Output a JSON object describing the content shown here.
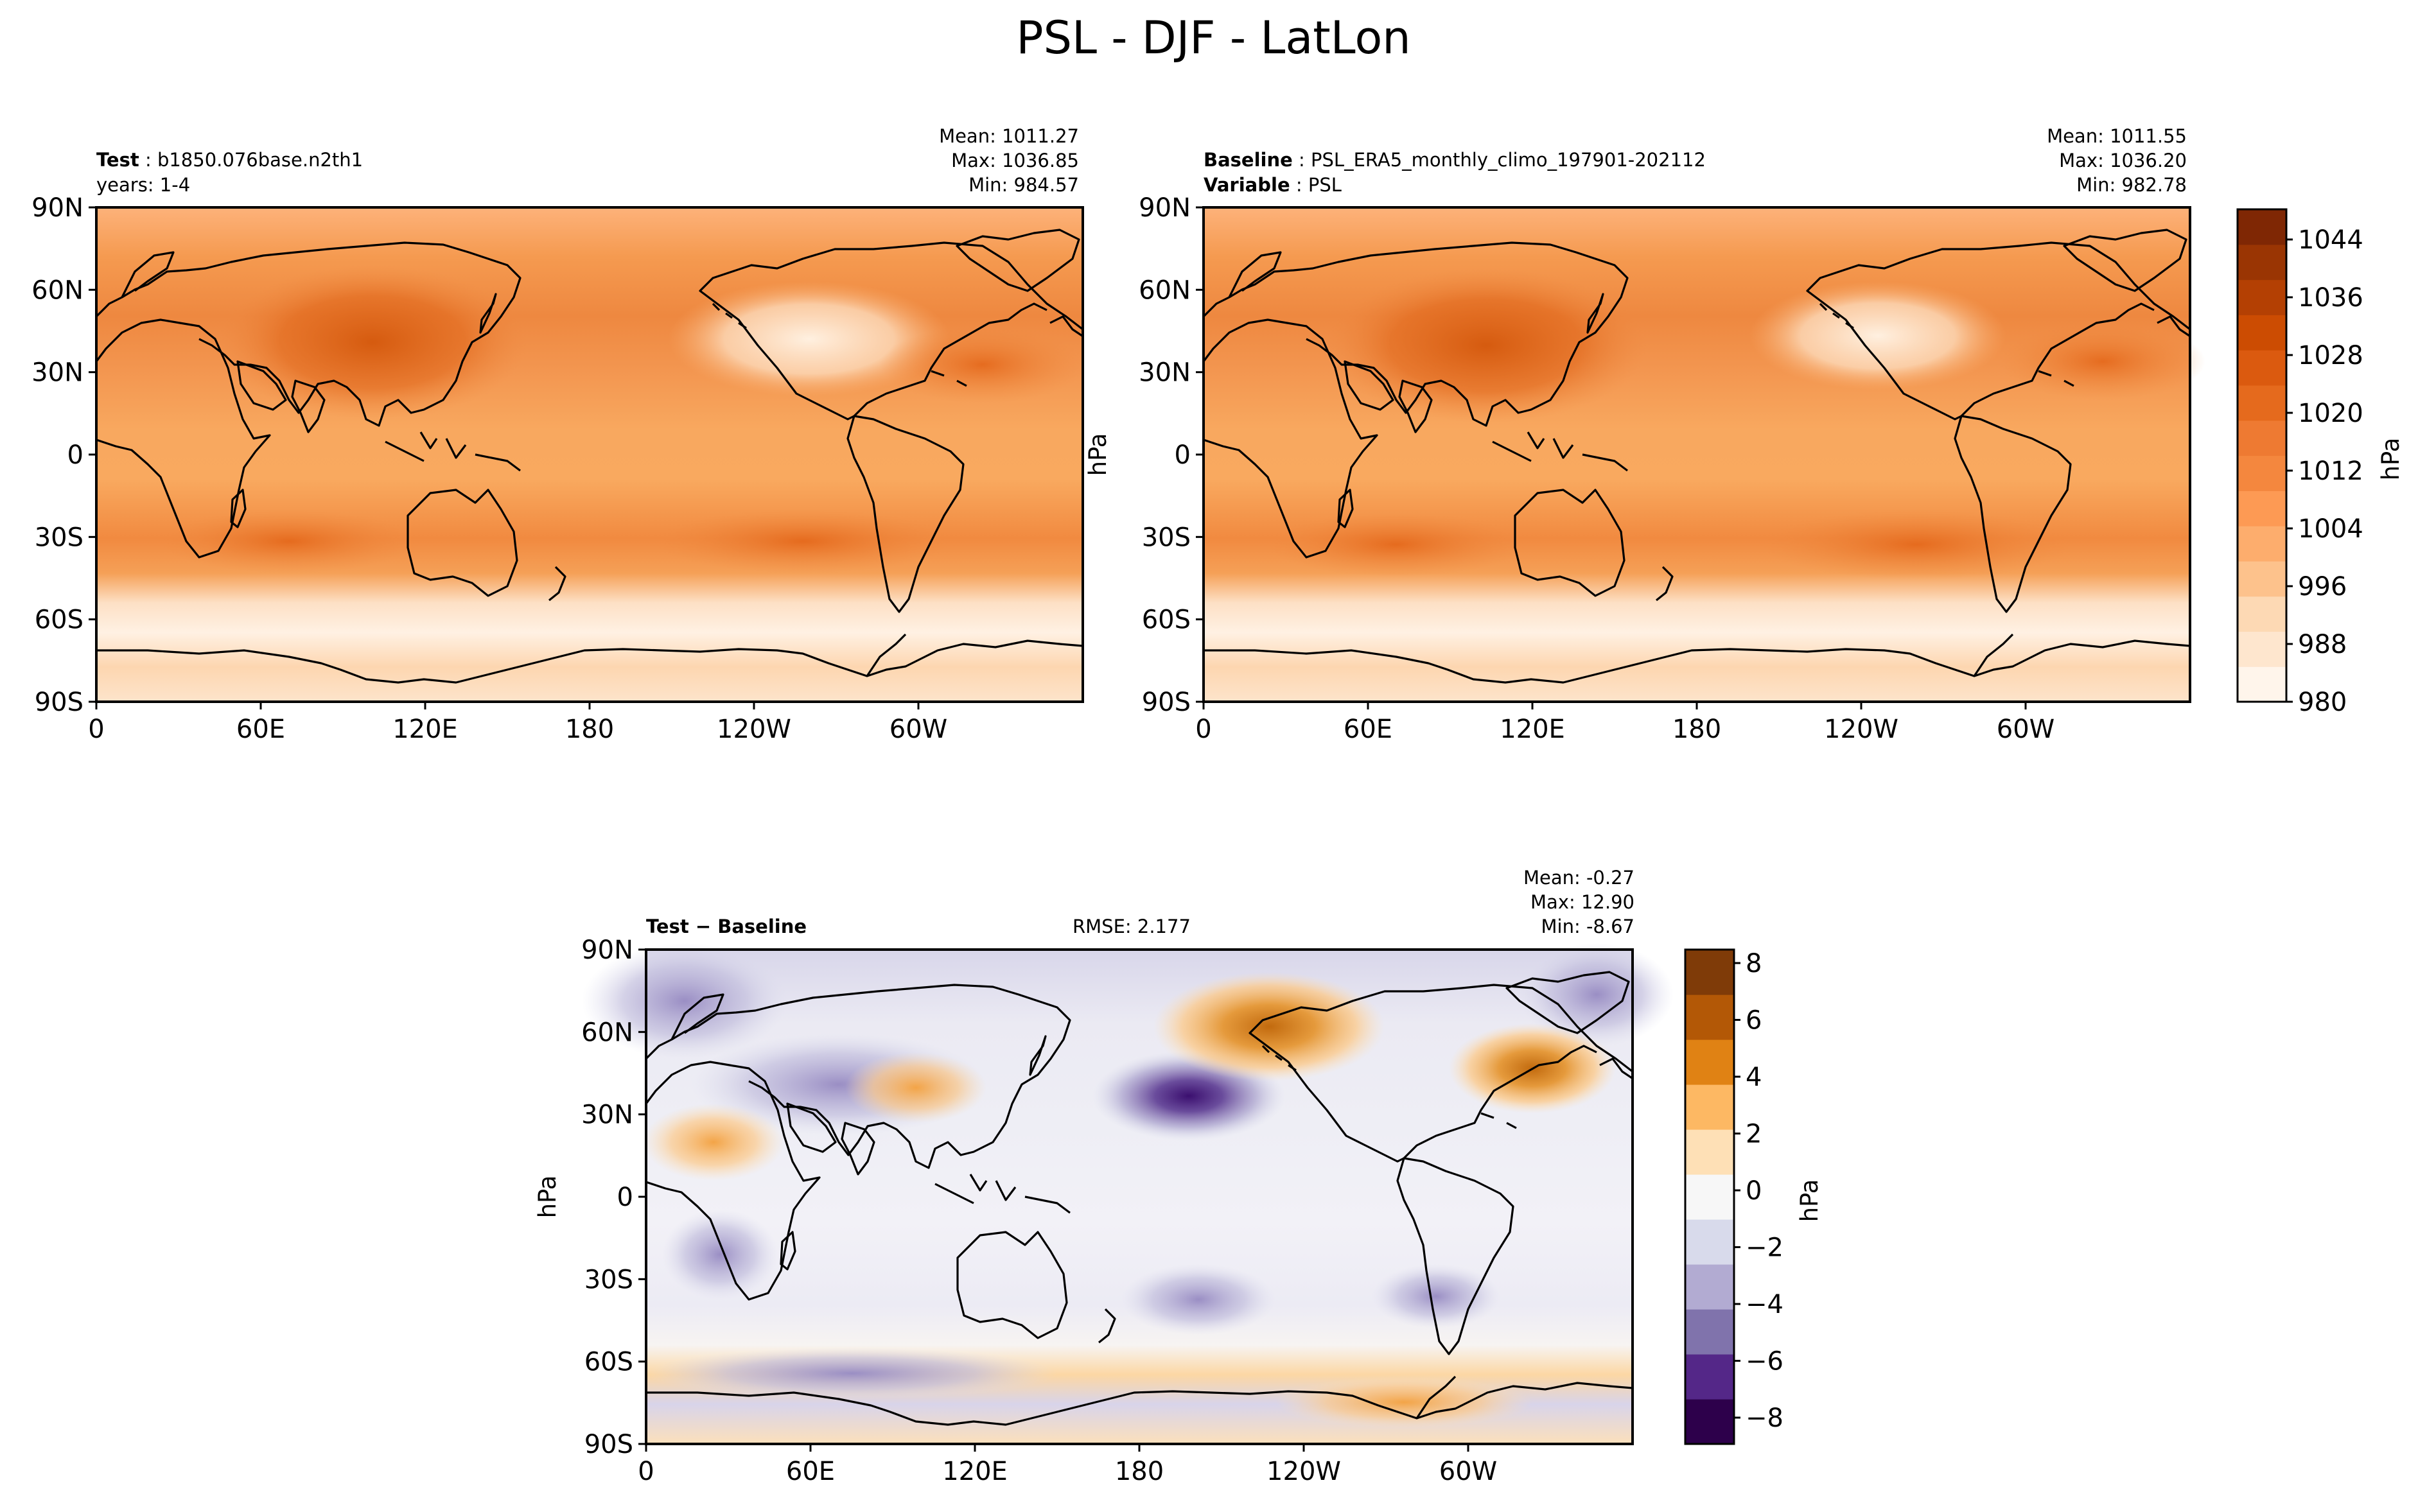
{
  "figure_title": "PSL - DJF - LatLon",
  "panels": {
    "test": {
      "header_bold": "Test",
      "header_value": "b1850.076base.n2th1",
      "subheader": "years: 1-4",
      "stats": {
        "mean": "Mean: 1011.27",
        "max": "Max: 1036.85",
        "min": "Min: 984.57"
      }
    },
    "baseline": {
      "header_bold": "Baseline",
      "header_value": "PSL_ERA5_monthly_climo_197901-202112",
      "sub_bold": "Variable",
      "sub_value": "PSL",
      "ylabel": "hPa",
      "stats": {
        "mean": "Mean: 1011.55",
        "max": "Max: 1036.20",
        "min": "Min: 982.78"
      }
    },
    "diff": {
      "header": "Test − Baseline",
      "rmse": "RMSE: 2.177",
      "ylabel": "hPa",
      "stats": {
        "mean": "Mean: -0.27",
        "max": "Max: 12.90",
        "min": "Min: -8.67"
      }
    }
  },
  "axes": {
    "lat_ticks": [
      "90N",
      "60N",
      "30N",
      "0",
      "30S",
      "60S",
      "90S"
    ],
    "lon_ticks": [
      "0",
      "60E",
      "120E",
      "180",
      "120W",
      "60W"
    ]
  },
  "colorbars": {
    "absolute": {
      "label": "hPa",
      "range": [
        980,
        1048
      ],
      "tick_labels": [
        "980",
        "988",
        "996",
        "1004",
        "1012",
        "1020",
        "1028",
        "1036",
        "1044"
      ],
      "colors": [
        "#fff5eb",
        "#fee6ce",
        "#fdd9b4",
        "#fdc28c",
        "#fdad6d",
        "#fd9a54",
        "#f4873e",
        "#ee7a32",
        "#e56a1d",
        "#db5a0f",
        "#cc4c02",
        "#b44003",
        "#9a3503",
        "#7f2704"
      ]
    },
    "difference": {
      "label": "hPa",
      "range": [
        -9,
        8.5
      ],
      "tick_labels": [
        "8",
        "6",
        "4",
        "2",
        "0",
        "−2",
        "−4",
        "−6",
        "−8"
      ],
      "colors": [
        "#2d004b",
        "#542788",
        "#8073ac",
        "#b2abd2",
        "#d8daeb",
        "#f7f7f7",
        "#fee0b6",
        "#fdb863",
        "#e08214",
        "#b35806",
        "#7f3b08"
      ]
    }
  },
  "chart_data": {
    "type": "heatmap",
    "title": "PSL - DJF - LatLon",
    "variable": "PSL",
    "season": "DJF",
    "units": "hPa",
    "panels": [
      {
        "name": "Test",
        "case": "b1850.076base.n2th1",
        "years": "1-4",
        "mean": 1011.27,
        "max": 1036.85,
        "min": 984.57,
        "colorbar_range": [
          980,
          1048
        ]
      },
      {
        "name": "Baseline",
        "case": "PSL_ERA5_monthly_climo_197901-202112",
        "mean": 1011.55,
        "max": 1036.2,
        "min": 982.78,
        "colorbar_range": [
          980,
          1048
        ]
      },
      {
        "name": "Test − Baseline",
        "rmse": 2.177,
        "mean": -0.27,
        "max": 12.9,
        "min": -8.67,
        "colorbar_range": [
          -9,
          8.5
        ]
      }
    ],
    "lat_range": [
      -90,
      90
    ],
    "lon_range": [
      0,
      360
    ]
  }
}
